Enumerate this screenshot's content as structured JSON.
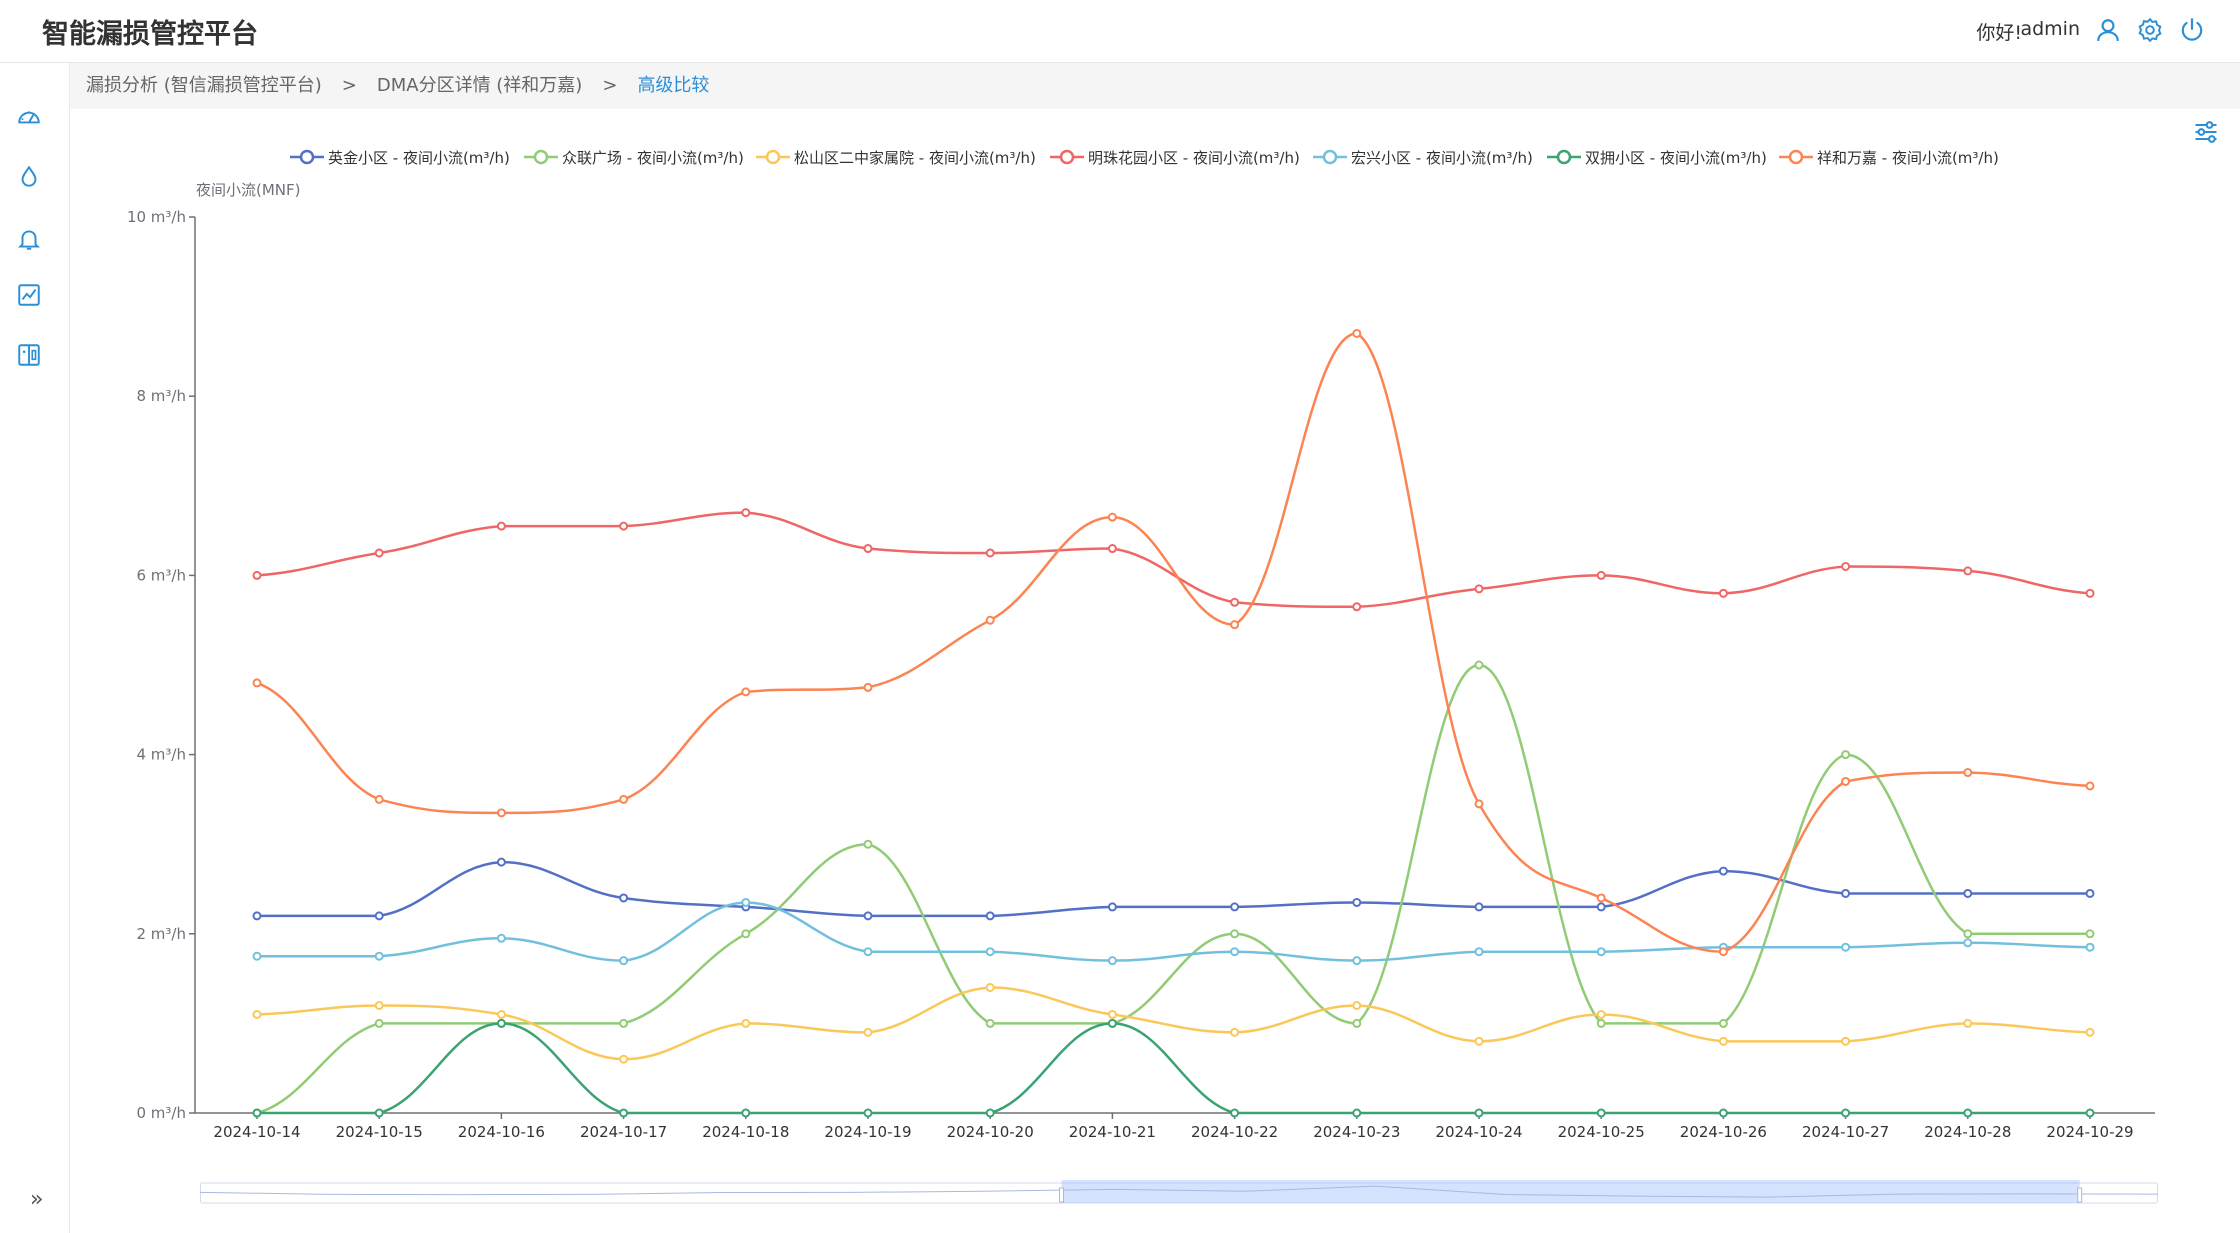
{
  "header": {
    "app_title": "智能漏损管控平台",
    "greeting": "你好!",
    "username": "admin",
    "icons": [
      "user-icon",
      "gear-icon",
      "power-icon"
    ]
  },
  "sidebar": {
    "icons": [
      "dashboard-gauge-icon",
      "water-drop-icon",
      "bell-icon",
      "line-chart-icon",
      "device-panel-icon"
    ],
    "collapse_label": "»"
  },
  "breadcrumb": {
    "items": [
      "漏损分析 (智信漏损管控平台)",
      "DMA分区详情 (祥和万嘉)",
      "高级比较"
    ],
    "separator": ">"
  },
  "colors": {
    "accent": "#2b8fd6",
    "axis": "#6e7079"
  },
  "chart_data": {
    "type": "line",
    "smooth": true,
    "ylabel": "夜间小流(MNF)",
    "ylim": [
      0,
      10
    ],
    "yticks": [
      "0 m³/h",
      "2 m³/h",
      "4 m³/h",
      "6 m³/h",
      "8 m³/h",
      "10 m³/h"
    ],
    "grid": false,
    "legend_position": "top",
    "categories": [
      "2024-10-14",
      "2024-10-15",
      "2024-10-16",
      "2024-10-17",
      "2024-10-18",
      "2024-10-19",
      "2024-10-20",
      "2024-10-21",
      "2024-10-22",
      "2024-10-23",
      "2024-10-24",
      "2024-10-25",
      "2024-10-26",
      "2024-10-27",
      "2024-10-28",
      "2024-10-29"
    ],
    "series": [
      {
        "name": "英金小区 - 夜间小流(m³/h)",
        "color": "#5470c6",
        "values": [
          2.2,
          2.2,
          2.8,
          2.4,
          2.3,
          2.2,
          2.2,
          2.3,
          2.3,
          2.35,
          2.3,
          2.3,
          2.7,
          2.45,
          2.45,
          2.45
        ]
      },
      {
        "name": "众联广场 - 夜间小流(m³/h)",
        "color": "#91cc75",
        "values": [
          0.0,
          1.0,
          1.0,
          1.0,
          2.0,
          3.0,
          1.0,
          1.0,
          2.0,
          1.0,
          5.0,
          1.0,
          1.0,
          4.0,
          2.0,
          2.0
        ]
      },
      {
        "name": "松山区二中家属院 - 夜间小流(m³/h)",
        "color": "#fac858",
        "values": [
          1.1,
          1.2,
          1.1,
          0.6,
          1.0,
          0.9,
          1.4,
          1.1,
          0.9,
          1.2,
          0.8,
          1.1,
          0.8,
          0.8,
          1.0,
          0.9
        ]
      },
      {
        "name": "明珠花园小区 - 夜间小流(m³/h)",
        "color": "#ee6666",
        "values": [
          6.0,
          6.25,
          6.55,
          6.55,
          6.7,
          6.3,
          6.25,
          6.3,
          5.7,
          5.65,
          5.85,
          6.0,
          5.8,
          6.1,
          6.05,
          5.8
        ]
      },
      {
        "name": "宏兴小区 - 夜间小流(m³/h)",
        "color": "#73c0de",
        "values": [
          1.75,
          1.75,
          1.95,
          1.7,
          2.35,
          1.8,
          1.8,
          1.7,
          1.8,
          1.7,
          1.8,
          1.8,
          1.85,
          1.85,
          1.9,
          1.85
        ]
      },
      {
        "name": "双拥小区 - 夜间小流(m³/h)",
        "color": "#3ba272",
        "values": [
          0,
          0,
          1.0,
          0,
          0,
          0,
          0,
          1.0,
          0,
          0,
          0,
          0,
          0,
          0,
          0,
          0
        ]
      },
      {
        "name": "祥和万嘉 - 夜间小流(m³/h)",
        "color": "#fc8452",
        "values": [
          4.8,
          3.5,
          3.35,
          3.5,
          4.7,
          4.75,
          5.5,
          6.65,
          5.45,
          8.7,
          3.45,
          2.4,
          1.8,
          3.7,
          3.8,
          3.65
        ]
      }
    ]
  },
  "data_zoom": {
    "start_percent": 44,
    "end_percent": 96
  }
}
